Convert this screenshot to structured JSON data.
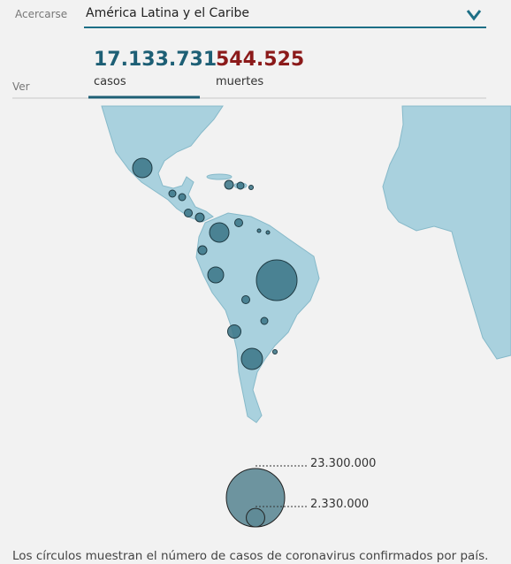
{
  "header": {
    "zoom_label": "Acercarse",
    "region": "América Latina y el Caribe",
    "view_label": "Ver"
  },
  "stats": [
    {
      "value": "17.133.731",
      "label": "casos"
    },
    {
      "value": "544.525",
      "label": "muertes"
    }
  ],
  "bubbles": {
    "values": [
      2590000,
      11300000,
      2590000,
      1733000,
      3080000,
      1203000,
      535000,
      433000,
      342000,
      433000,
      535000,
      433000,
      342000,
      342000,
      535000,
      342000,
      134000,
      134000,
      86000,
      86000
    ]
  },
  "legend": {
    "values": [
      23300000,
      2330000
    ],
    "labels": [
      "23.300.000",
      "2.330.000"
    ]
  },
  "footer": "Los círculos muestran el número de casos de coronavirus confirmados por país."
}
